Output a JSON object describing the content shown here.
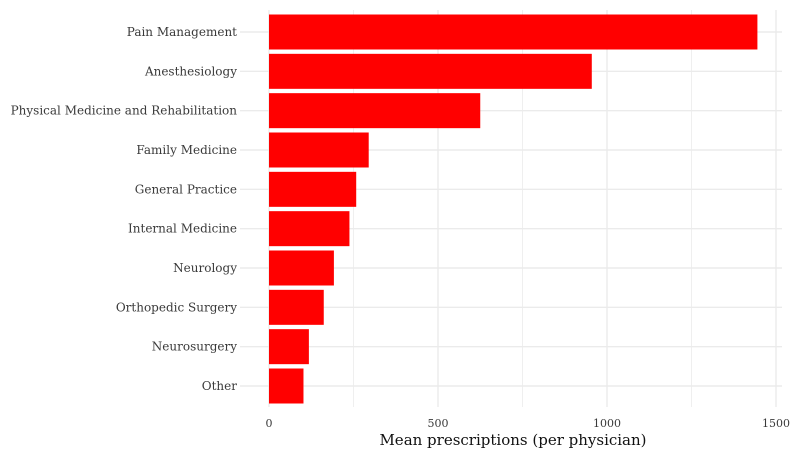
{
  "chart_data": {
    "type": "bar",
    "orientation": "horizontal",
    "title": "",
    "xlabel": "Mean prescriptions (per physician)",
    "ylabel": "",
    "xlim": [
      -85,
      1520
    ],
    "x_ticks": [
      0,
      500,
      1000,
      1500
    ],
    "x_tick_labels": [
      "0",
      "500",
      "1000",
      "1500"
    ],
    "grid": true,
    "legend": "none",
    "bar_color": "#ff0000",
    "gridline_color": "#ebebeb",
    "categories": [
      "Pain Management",
      "Anesthesiology",
      "Physical Medicine and Rehabilitation",
      "Family Medicine",
      "General Practice",
      "Internal Medicine",
      "Neurology",
      "Orthopedic Surgery",
      "Neurosurgery",
      "Other"
    ],
    "values": [
      1445,
      955,
      625,
      295,
      258,
      238,
      192,
      162,
      118,
      102
    ]
  }
}
